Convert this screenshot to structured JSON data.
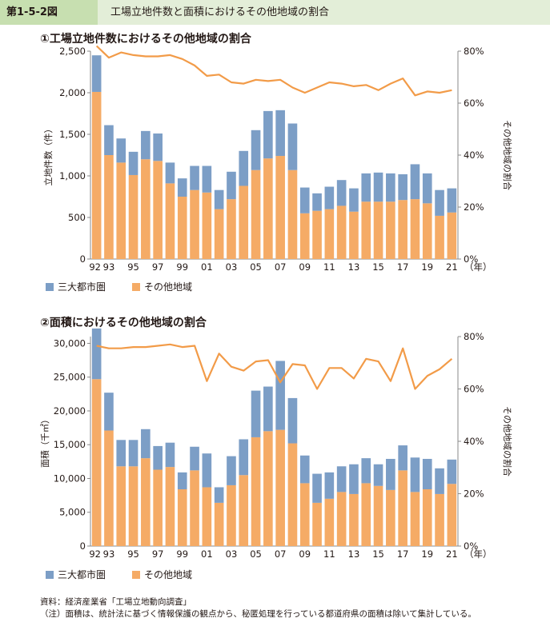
{
  "header": {
    "figure_number": "第1-5-2図",
    "figure_title": "工場立地件数と面積におけるその他地域の割合"
  },
  "colors": {
    "three_metro": "#7c9ec6",
    "other_area": "#f5ab66",
    "ratio_line": "#f29b48",
    "header_bg": "#e3eed8",
    "header_num_bg": "#c7dfb0"
  },
  "chart_data": [
    {
      "type": "bar",
      "title": "①工場立地件数におけるその他地域の割合",
      "ylabel": "立地件数（件）",
      "y2label": "その他地域の割合",
      "xlabel_unit": "（年）",
      "ylim": [
        0,
        2500
      ],
      "yticks": [
        "0",
        "500",
        "1,000",
        "1,500",
        "2,000",
        "2,500"
      ],
      "y2lim": [
        0,
        80
      ],
      "y2ticks": [
        "0%",
        "20%",
        "40%",
        "60%",
        "80%"
      ],
      "categories": [
        "92",
        "93",
        "94",
        "95",
        "96",
        "97",
        "98",
        "99",
        "00",
        "01",
        "02",
        "03",
        "04",
        "05",
        "06",
        "07",
        "08",
        "09",
        "10",
        "11",
        "12",
        "13",
        "14",
        "15",
        "16",
        "17",
        "18",
        "19",
        "20",
        "21"
      ],
      "xtick_labels": [
        "92",
        "93",
        "95",
        "97",
        "99",
        "01",
        "03",
        "05",
        "07",
        "09",
        "11",
        "13",
        "15",
        "17",
        "19",
        "21"
      ],
      "series": [
        {
          "name": "三大都市圏",
          "values": [
            440,
            360,
            290,
            280,
            340,
            330,
            250,
            220,
            290,
            320,
            230,
            330,
            420,
            480,
            570,
            550,
            560,
            310,
            210,
            270,
            310,
            280,
            340,
            350,
            340,
            310,
            420,
            360,
            310,
            290
          ]
        },
        {
          "name": "その他地域",
          "values": [
            2010,
            1250,
            1160,
            1010,
            1200,
            1180,
            910,
            750,
            830,
            800,
            600,
            720,
            880,
            1070,
            1210,
            1240,
            1070,
            550,
            580,
            600,
            640,
            570,
            690,
            690,
            690,
            710,
            720,
            670,
            520,
            560
          ]
        },
        {
          "name": "その他地域の割合",
          "axis": "right",
          "values": [
            82,
            77.5,
            79.5,
            78.5,
            78,
            78,
            78.5,
            77,
            74.5,
            70.5,
            71,
            68,
            67.5,
            69,
            68.5,
            69,
            66,
            64,
            66,
            68,
            67.5,
            66.5,
            67,
            65,
            67.5,
            69.5,
            63,
            64.5,
            64,
            65
          ]
        }
      ],
      "legend": [
        "三大都市圏",
        "その他地域"
      ]
    },
    {
      "type": "bar",
      "title": "②面積におけるその他地域の割合",
      "ylabel": "面積（千㎡）",
      "y2label": "その他地域の割合",
      "xlabel_unit": "（年）",
      "ylim": [
        0,
        31000
      ],
      "yticks": [
        "0",
        "5,000",
        "10,000",
        "15,000",
        "20,000",
        "25,000",
        "30,000"
      ],
      "y2lim": [
        0,
        80
      ],
      "y2ticks": [
        "0%",
        "20%",
        "40%",
        "60%",
        "80%"
      ],
      "categories": [
        "92",
        "93",
        "94",
        "95",
        "96",
        "97",
        "98",
        "99",
        "00",
        "01",
        "02",
        "03",
        "04",
        "05",
        "06",
        "07",
        "08",
        "09",
        "10",
        "11",
        "12",
        "13",
        "14",
        "15",
        "16",
        "17",
        "18",
        "19",
        "20",
        "21"
      ],
      "xtick_labels": [
        "92",
        "93",
        "95",
        "97",
        "99",
        "01",
        "03",
        "05",
        "07",
        "09",
        "11",
        "13",
        "15",
        "17",
        "19",
        "21"
      ],
      "series": [
        {
          "name": "三大都市圏",
          "values": [
            7500,
            5600,
            3900,
            3900,
            4300,
            3500,
            3600,
            2500,
            3500,
            5000,
            2300,
            4300,
            5300,
            6900,
            6600,
            10200,
            6700,
            4100,
            4300,
            3900,
            3800,
            4400,
            3700,
            3200,
            4600,
            3700,
            5100,
            4500,
            3800,
            3600
          ]
        },
        {
          "name": "その他地域",
          "values": [
            24700,
            17100,
            11800,
            11800,
            13000,
            11300,
            11700,
            8400,
            11200,
            8700,
            6400,
            9000,
            10500,
            16100,
            17000,
            17200,
            15200,
            9300,
            6400,
            7000,
            8000,
            7700,
            9300,
            8900,
            8300,
            11200,
            8000,
            8400,
            7700,
            9200
          ]
        },
        {
          "name": "その他地域の割合",
          "axis": "right",
          "values": [
            76.5,
            75.5,
            75.5,
            76,
            76,
            76.5,
            77,
            76,
            76.5,
            63,
            73.5,
            68.5,
            67,
            70.5,
            71,
            62.5,
            69.5,
            69,
            60,
            68,
            68,
            64,
            71.5,
            70.5,
            63,
            75.5,
            60,
            65,
            67.5,
            71.5
          ]
        }
      ],
      "legend": [
        "三大都市圏",
        "その他地域"
      ]
    }
  ],
  "notes": {
    "source": "資料：経済産業省「工場立地動向調査」",
    "note": "（注）面積は、統計法に基づく情報保護の観点から、秘匿処理を行っている都道府県の面積は除いて集計している。"
  }
}
